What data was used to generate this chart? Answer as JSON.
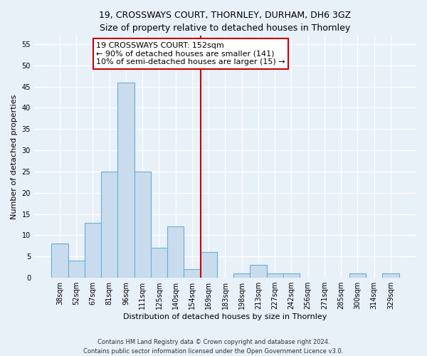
{
  "title": "19, CROSSWAYS COURT, THORNLEY, DURHAM, DH6 3GZ",
  "subtitle": "Size of property relative to detached houses in Thornley",
  "xlabel": "Distribution of detached houses by size in Thornley",
  "ylabel": "Number of detached properties",
  "bar_labels": [
    "38sqm",
    "52sqm",
    "67sqm",
    "81sqm",
    "96sqm",
    "111sqm",
    "125sqm",
    "140sqm",
    "154sqm",
    "169sqm",
    "183sqm",
    "198sqm",
    "213sqm",
    "227sqm",
    "242sqm",
    "256sqm",
    "271sqm",
    "285sqm",
    "300sqm",
    "314sqm",
    "329sqm"
  ],
  "bar_values": [
    8,
    4,
    13,
    25,
    46,
    25,
    7,
    12,
    2,
    6,
    0,
    1,
    3,
    1,
    1,
    0,
    0,
    0,
    1,
    0,
    1
  ],
  "bar_color": "#c8dcee",
  "bar_edgecolor": "#6baed6",
  "bar_width": 1.0,
  "property_line_x": 8.5,
  "property_line_color": "#cc0000",
  "annotation_text": "19 CROSSWAYS COURT: 152sqm\n← 90% of detached houses are smaller (141)\n10% of semi-detached houses are larger (15) →",
  "annotation_box_edgecolor": "#cc0000",
  "ylim": [
    0,
    57
  ],
  "yticks": [
    0,
    5,
    10,
    15,
    20,
    25,
    30,
    35,
    40,
    45,
    50,
    55
  ],
  "footer": "Contains HM Land Registry data © Crown copyright and database right 2024.\nContains public sector information licensed under the Open Government Licence v3.0.",
  "bg_color": "#e8f0f8",
  "plot_bg_color": "#e8f0f8",
  "grid_color": "#ffffff",
  "title_fontsize": 9,
  "subtitle_fontsize": 8.5,
  "tick_fontsize": 7,
  "ylabel_fontsize": 8,
  "xlabel_fontsize": 8,
  "annotation_fontsize": 8,
  "footer_fontsize": 6
}
